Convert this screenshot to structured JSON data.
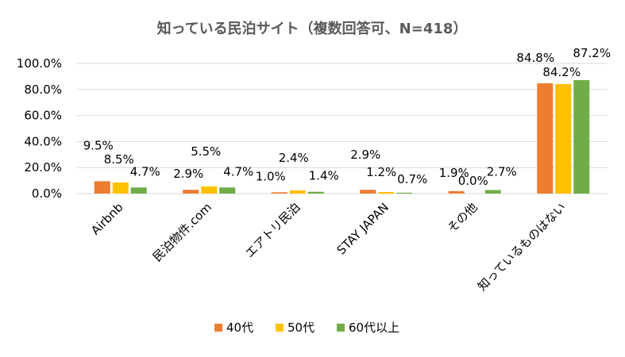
{
  "chart_data": {
    "type": "bar",
    "title": "知っている民泊サイト（複数回答可、N=418）",
    "categories": [
      "Airbnb",
      "民泊物件.com",
      "エアトリ民泊",
      "STAY JAPAN",
      "その他",
      "知っているものはない"
    ],
    "series": [
      {
        "name": "40代",
        "color": "#ED7D31",
        "values": [
          9.5,
          2.9,
          1.0,
          2.9,
          1.9,
          84.8
        ],
        "labels": [
          "9.5%",
          "2.9%",
          "1.0%",
          "2.9%",
          "1.9%",
          "84.8%"
        ]
      },
      {
        "name": "50代",
        "color": "#FFC000",
        "values": [
          8.5,
          5.5,
          2.4,
          1.2,
          0.0,
          84.2
        ],
        "labels": [
          "8.5%",
          "5.5%",
          "2.4%",
          "1.2%",
          "0.0%",
          "84.2%"
        ]
      },
      {
        "name": "60代以上",
        "color": "#70AD47",
        "values": [
          4.7,
          4.7,
          1.4,
          0.7,
          2.7,
          87.2
        ],
        "labels": [
          "4.7%",
          "4.7%",
          "1.4%",
          "0.7%",
          "2.7%",
          "87.2%"
        ]
      }
    ],
    "yticks": [
      "0.0%",
      "20.0%",
      "40.0%",
      "60.0%",
      "80.0%",
      "100.0%"
    ],
    "ylim": [
      0,
      100
    ],
    "grid": true,
    "legend": "bottom"
  }
}
